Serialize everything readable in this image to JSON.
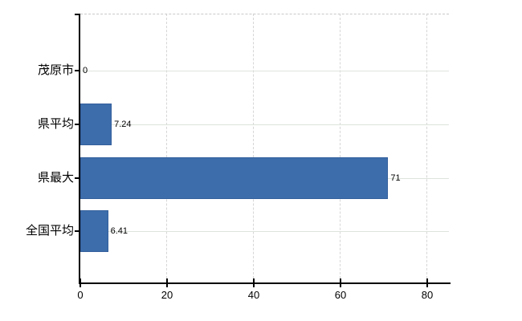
{
  "chart_data": {
    "type": "bar",
    "orientation": "horizontal",
    "title": "",
    "xlabel": "",
    "ylabel": "",
    "categories": [
      "茂原市",
      "県平均",
      "県最大",
      "全国平均"
    ],
    "values": [
      0,
      7.24,
      71,
      6.41
    ],
    "value_labels": [
      "0",
      "7.24",
      "71",
      "6.41"
    ],
    "x_ticks": [
      0,
      20,
      40,
      60,
      80
    ],
    "x_tick_labels": [
      "0",
      "20",
      "40",
      "60",
      "80"
    ],
    "xlim": [
      0,
      85
    ],
    "grid": true,
    "legend": "none",
    "colors": {
      "bar_fill": "#3d6dab",
      "bar_border": "#335f9c",
      "axis": "#000000",
      "horizontal_gridline": "#dde4dc",
      "vertical_gridline": "#d6d6d6",
      "frame_dash": "#c9c9c9",
      "background": "#ffffff",
      "text": "#000000"
    }
  }
}
